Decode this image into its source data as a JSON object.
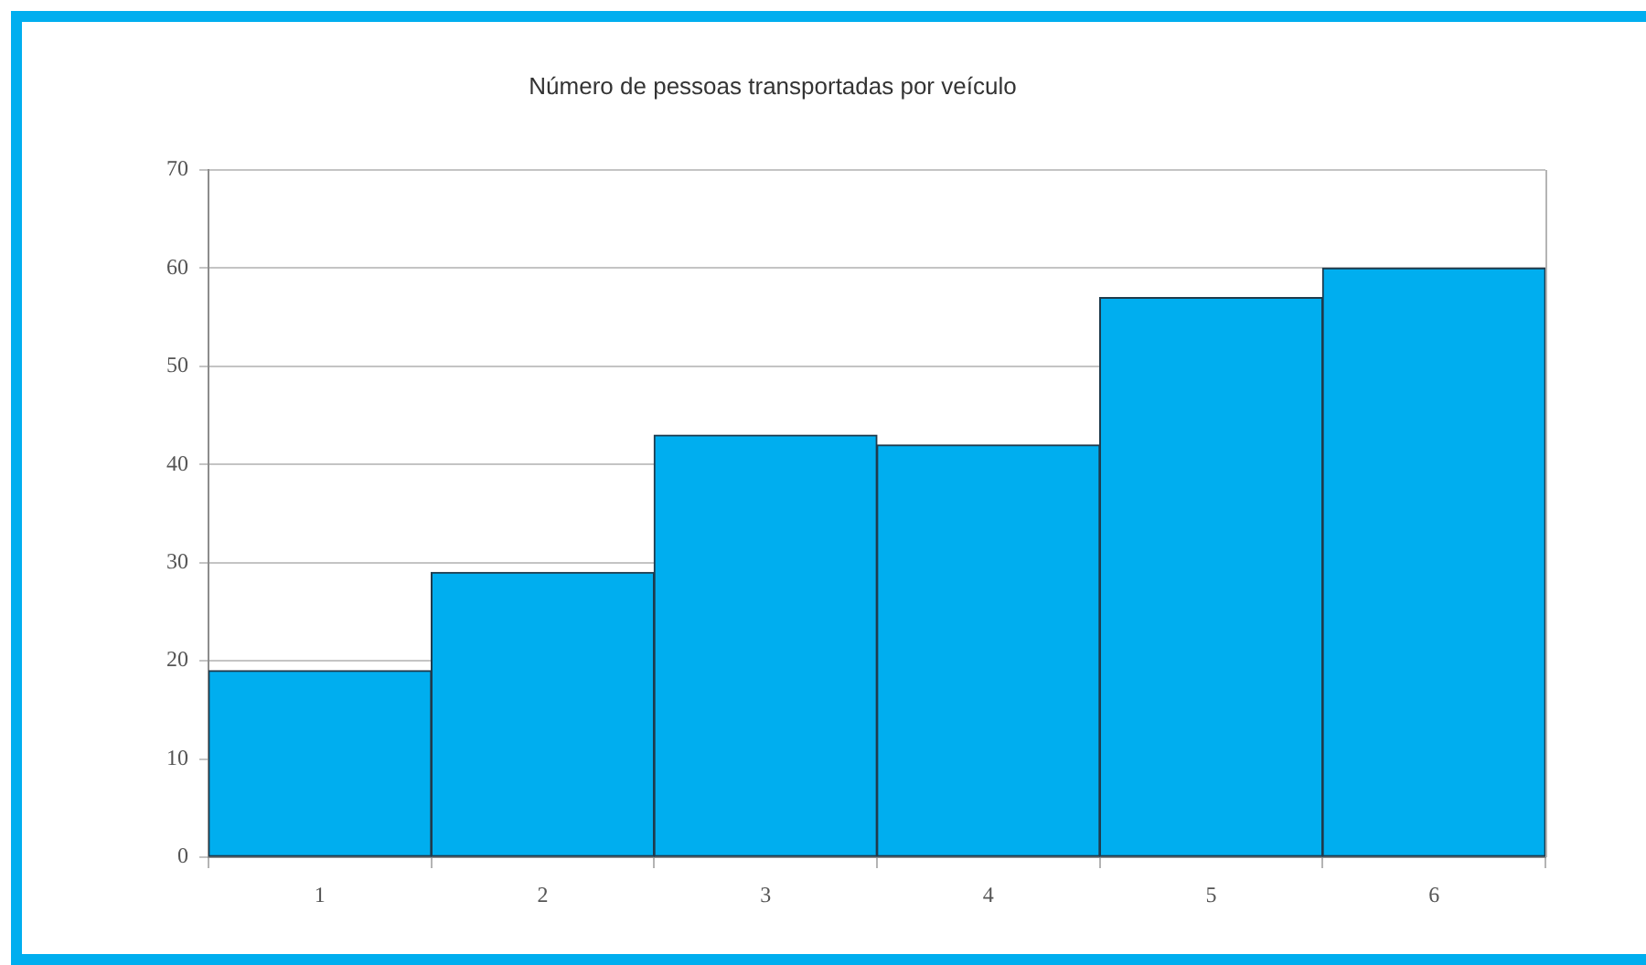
{
  "chart_data": {
    "type": "bar",
    "title": "Número de pessoas transportadas por veículo",
    "categories": [
      "1",
      "2",
      "3",
      "4",
      "5",
      "6"
    ],
    "values": [
      19,
      29,
      43,
      42,
      57,
      60
    ],
    "color": "#00aeef",
    "ylim": [
      0,
      70
    ],
    "yticks": [
      0,
      10,
      20,
      30,
      40,
      50,
      60,
      70
    ],
    "grid": "y"
  }
}
